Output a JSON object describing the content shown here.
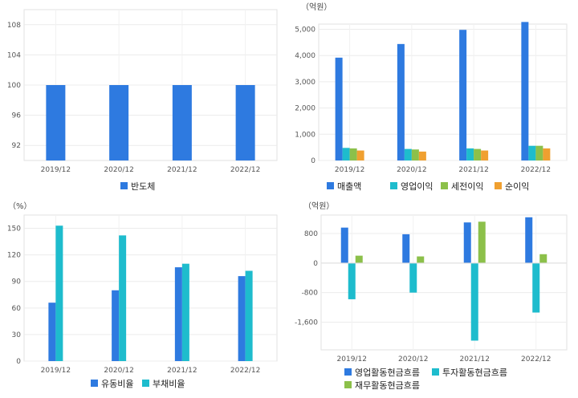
{
  "chart_data": [
    {
      "type": "bar",
      "categories": [
        "2019/12",
        "2020/12",
        "2021/12",
        "2022/12"
      ],
      "series": [
        {
          "name": "반도체",
          "values": [
            100,
            100,
            100,
            100
          ],
          "color": "#2e7ae0"
        }
      ],
      "yticks": [
        92,
        96,
        100,
        104,
        108
      ],
      "ylim": [
        90,
        110
      ],
      "unit_label": "",
      "legend_position": "bottom",
      "grid": true
    },
    {
      "type": "bar",
      "categories": [
        "2019/12",
        "2020/12",
        "2021/12",
        "2022/12"
      ],
      "series": [
        {
          "name": "매출액",
          "values": [
            3920,
            4440,
            4980,
            5280
          ],
          "color": "#2e7ae0"
        },
        {
          "name": "영업이익",
          "values": [
            480,
            440,
            460,
            560
          ],
          "color": "#1ebccd"
        },
        {
          "name": "세전이익",
          "values": [
            460,
            420,
            440,
            560
          ],
          "color": "#8cc04a"
        },
        {
          "name": "순이익",
          "values": [
            380,
            340,
            380,
            460
          ],
          "color": "#f0a030"
        }
      ],
      "yticks": [
        0,
        1000,
        2000,
        3000,
        4000,
        5000
      ],
      "ytick_labels": [
        "0",
        "1,000",
        "2,000",
        "3,000",
        "4,000",
        "5,000"
      ],
      "ylim": [
        0,
        5200
      ],
      "unit_label": "（억원）",
      "legend_position": "bottom",
      "grid": true
    },
    {
      "type": "bar",
      "categories": [
        "2019/12",
        "2020/12",
        "2021/12",
        "2022/12"
      ],
      "series": [
        {
          "name": "유동비율",
          "values": [
            66,
            80,
            106,
            96
          ],
          "color": "#2e7ae0"
        },
        {
          "name": "부채비율",
          "values": [
            153,
            142,
            110,
            102
          ],
          "color": "#1ebccd"
        }
      ],
      "yticks": [
        0,
        30,
        60,
        90,
        120,
        150
      ],
      "ylim": [
        0,
        165
      ],
      "unit_label": "（%）",
      "legend_position": "bottom",
      "grid": true
    },
    {
      "type": "bar",
      "categories": [
        "2019/12",
        "2020/12",
        "2021/12",
        "2022/12"
      ],
      "series": [
        {
          "name": "영업활동현금흐름",
          "values": [
            960,
            780,
            1100,
            1240
          ],
          "color": "#2e7ae0"
        },
        {
          "name": "투자활동현금흐름",
          "values": [
            -980,
            -800,
            -2100,
            -1340
          ],
          "color": "#1ebccd"
        },
        {
          "name": "재무활동현금흐름",
          "values": [
            200,
            180,
            1120,
            240
          ],
          "color": "#8cc04a"
        }
      ],
      "yticks": [
        -1600,
        -800,
        0,
        800
      ],
      "ytick_labels": [
        "-1,600",
        "-800",
        "0",
        "800"
      ],
      "ylim": [
        -2350,
        1300
      ],
      "unit_label": "（억원）",
      "legend_position": "bottom",
      "grid": true
    }
  ]
}
